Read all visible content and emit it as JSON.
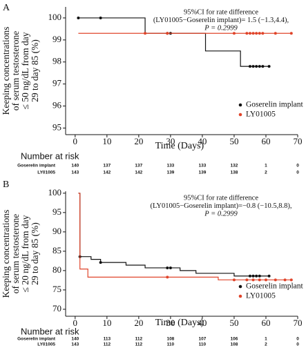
{
  "chart_data": [
    {
      "type": "step",
      "panel": "A",
      "y_label": [
        "Keeping concentrations",
        "of serum testosterone",
        "≤ 50 ng/dL from day",
        "29 to day 85 (%)"
      ],
      "x_label": "Time (Days)",
      "annotation": [
        "95%CI for rate difference",
        "(LY01005−Goserelin implant)= 1.5 (−1.3,4.4),",
        "P = 0.2999"
      ],
      "xlim": [
        -3,
        70
      ],
      "xticks": [
        0,
        10,
        20,
        30,
        40,
        50,
        60,
        70
      ],
      "ylim": [
        94.7,
        100.5
      ],
      "yticks": [
        95,
        96,
        97,
        98,
        99,
        100
      ],
      "series": [
        {
          "name": "Goserelin implant",
          "color": "#111111",
          "x": [
            1,
            22,
            41,
            52,
            61
          ],
          "values": [
            100,
            99.3,
            98.5,
            97.8,
            97.8
          ],
          "censored": {
            "x": [
              1,
              8,
              29,
              30,
              55,
              56,
              57,
              58,
              59,
              61
            ],
            "values": [
              100,
              100,
              99.3,
              99.3,
              97.8,
              97.8,
              97.8,
              97.8,
              97.8,
              97.8
            ]
          }
        },
        {
          "name": "LY01005",
          "color": "#e0442a",
          "x": [
            1,
            68
          ],
          "values": [
            99.3,
            99.3
          ],
          "censored": {
            "x": [
              22,
              29,
              50,
              54,
              55,
              56,
              57,
              58,
              59,
              63,
              68
            ],
            "values": [
              99.3,
              99.3,
              99.3,
              99.3,
              99.3,
              99.3,
              99.3,
              99.3,
              99.3,
              99.3,
              99.3
            ]
          }
        }
      ],
      "risk_table": {
        "title": "Number at risk",
        "rows": [
          {
            "name": "Goserelin implant",
            "values": [
              140,
              137,
              137,
              133,
              133,
              132,
              1,
              0
            ]
          },
          {
            "name": "LY01005",
            "values": [
              143,
              142,
              142,
              139,
              139,
              138,
              2,
              0
            ]
          }
        ]
      }
    },
    {
      "type": "step",
      "panel": "B",
      "y_label": [
        "Keeping concentrations",
        "of serum testosterone",
        "≤ 20 ng/dL from day",
        "29 to day 85 (%)"
      ],
      "x_label": "Time (Days)",
      "annotation": [
        "95%CI for rate difference",
        "(LY01005−Goserelin implant)=−0.8 (−10.5,8.8),",
        "P = 0.2999"
      ],
      "xlim": [
        -3,
        70
      ],
      "xticks": [
        0,
        10,
        20,
        30,
        40,
        50,
        60,
        70
      ],
      "ylim": [
        68.2,
        100.5
      ],
      "yticks": [
        70,
        75,
        80,
        85,
        90,
        95,
        100
      ],
      "series": [
        {
          "name": "Goserelin implant",
          "color": "#111111",
          "x": [
            1,
            1.5,
            5,
            8,
            16,
            22,
            33,
            38,
            50,
            61
          ],
          "values": [
            100,
            83.6,
            82.9,
            82.1,
            81.4,
            80.7,
            80.0,
            79.3,
            78.6,
            78.6
          ],
          "censored": {
            "x": [
              1.5,
              8,
              29,
              30,
              55,
              56,
              57,
              58,
              61
            ],
            "values": [
              83.6,
              82.1,
              80.7,
              80.7,
              78.6,
              78.6,
              78.6,
              78.6,
              78.6
            ]
          }
        },
        {
          "name": "LY01005",
          "color": "#e0442a",
          "x": [
            1,
            1.5,
            4,
            45,
            68
          ],
          "values": [
            100,
            80.4,
            78.3,
            77.6,
            77.6
          ],
          "censored": {
            "x": [
              29,
              50,
              54,
              56,
              58,
              60,
              63,
              66,
              68
            ],
            "values": [
              78.3,
              77.6,
              77.6,
              77.6,
              77.6,
              77.6,
              77.6,
              77.6,
              77.6
            ]
          }
        }
      ],
      "risk_table": {
        "title": "Number at risk",
        "rows": [
          {
            "name": "Goserelin implant",
            "values": [
              140,
              113,
              112,
              108,
              107,
              106,
              1,
              0
            ]
          },
          {
            "name": "LY01005",
            "values": [
              143,
              112,
              112,
              110,
              110,
              108,
              2,
              0
            ]
          }
        ]
      }
    }
  ]
}
